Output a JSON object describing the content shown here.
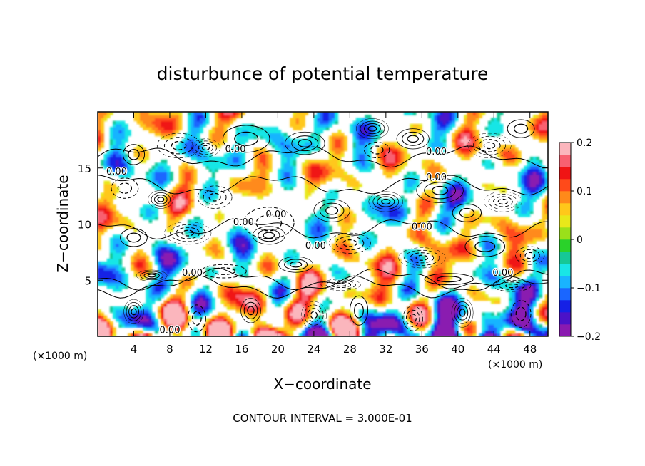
{
  "chart_data": {
    "type": "heatmap",
    "title": "disturbunce of potential temperature",
    "xlabel": "X−coordinate",
    "ylabel": "Z−coordinate",
    "x_unit_left": "(×1000 m)",
    "x_unit_right": "(×1000 m)",
    "footer": "CONTOUR INTERVAL = 3.000E-01",
    "xlim": [
      0,
      50
    ],
    "ylim": [
      0,
      20
    ],
    "x_ticks": [
      4,
      8,
      12,
      16,
      20,
      24,
      28,
      32,
      36,
      40,
      44,
      48
    ],
    "y_ticks": [
      5,
      10,
      15
    ],
    "colorbar": {
      "range": [
        -0.2,
        0.2
      ],
      "ticks": [
        {
          "value": 0.2,
          "label": "0.2"
        },
        {
          "value": 0.1,
          "label": "0.1"
        },
        {
          "value": 0,
          "label": "0"
        },
        {
          "value": -0.1,
          "label": "−0.1"
        },
        {
          "value": -0.2,
          "label": "−0.2"
        }
      ],
      "colors": [
        "#8a1ab0",
        "#4b12c8",
        "#1520e6",
        "#1a66ff",
        "#19b4ff",
        "#19e6e6",
        "#16c896",
        "#2ad22a",
        "#9ae01a",
        "#e8e81a",
        "#ffc81a",
        "#ff8a1a",
        "#ff4a1a",
        "#f01414",
        "#f86070",
        "#fbb6bd"
      ]
    },
    "contour_labels": [
      {
        "text": "0.00",
        "x": 15.3,
        "y": 16.4
      },
      {
        "text": "0.00",
        "x": 2.1,
        "y": 14.4
      },
      {
        "text": "0.00",
        "x": 37.6,
        "y": 16.2
      },
      {
        "text": "0.00",
        "x": 37.6,
        "y": 13.9
      },
      {
        "text": "0.00",
        "x": 36.0,
        "y": 9.5
      },
      {
        "text": "0.00",
        "x": 16.2,
        "y": 9.9
      },
      {
        "text": "0.00",
        "x": 19.8,
        "y": 10.6
      },
      {
        "text": "0.00",
        "x": 24.2,
        "y": 7.8
      },
      {
        "text": "0.00",
        "x": 10.5,
        "y": 5.4
      },
      {
        "text": "0.00",
        "x": 45.0,
        "y": 5.4
      },
      {
        "text": "0.00",
        "x": 8.0,
        "y": 0.3
      }
    ]
  }
}
